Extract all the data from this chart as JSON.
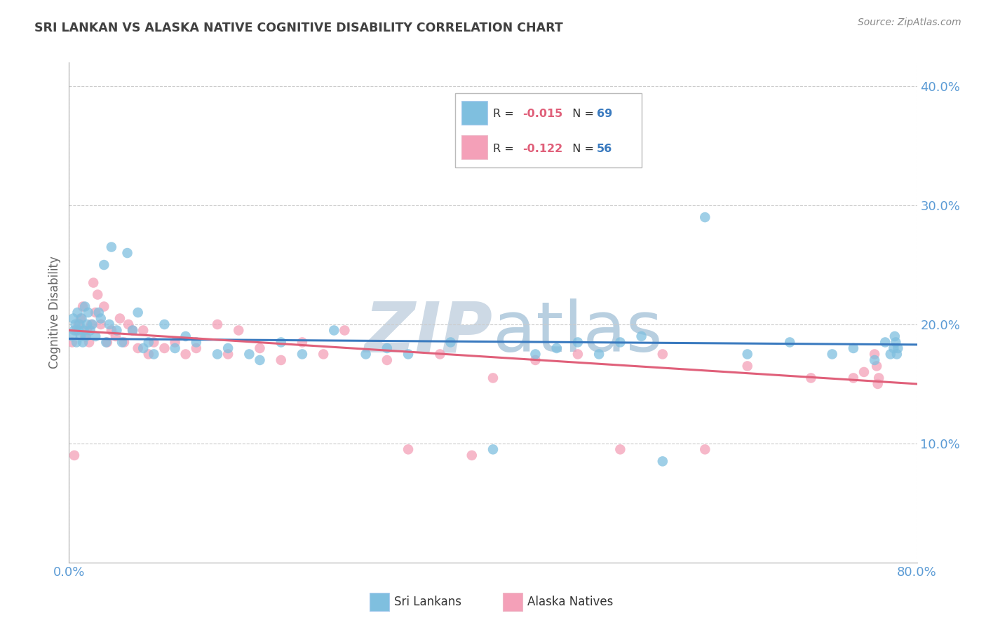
{
  "title": "SRI LANKAN VS ALASKA NATIVE COGNITIVE DISABILITY CORRELATION CHART",
  "source": "Source: ZipAtlas.com",
  "ylabel": "Cognitive Disability",
  "xlim": [
    0.0,
    0.8
  ],
  "ylim": [
    0.0,
    0.42
  ],
  "ytick_vals": [
    0.1,
    0.2,
    0.3,
    0.4
  ],
  "ytick_labels": [
    "10.0%",
    "20.0%",
    "30.0%",
    "40.0%"
  ],
  "xtick_vals": [
    0.0,
    0.8
  ],
  "xtick_labels": [
    "0.0%",
    "80.0%"
  ],
  "color_blue": "#7fbfdf",
  "color_pink": "#f4a0b8",
  "color_blue_line": "#3a7abf",
  "color_pink_line": "#e0607a",
  "background_color": "#ffffff",
  "grid_color": "#cccccc",
  "axis_label_color": "#5b9bd5",
  "title_color": "#404040",
  "legend_label_blue": "Sri Lankans",
  "legend_label_pink": "Alaska Natives",
  "sri_x": [
    0.003,
    0.004,
    0.005,
    0.006,
    0.007,
    0.008,
    0.009,
    0.01,
    0.011,
    0.012,
    0.013,
    0.014,
    0.015,
    0.016,
    0.017,
    0.018,
    0.02,
    0.022,
    0.025,
    0.028,
    0.03,
    0.033,
    0.035,
    0.038,
    0.04,
    0.045,
    0.05,
    0.055,
    0.06,
    0.065,
    0.07,
    0.075,
    0.08,
    0.09,
    0.1,
    0.11,
    0.12,
    0.14,
    0.15,
    0.17,
    0.18,
    0.2,
    0.22,
    0.25,
    0.28,
    0.3,
    0.32,
    0.36,
    0.4,
    0.44,
    0.46,
    0.48,
    0.5,
    0.52,
    0.54,
    0.56,
    0.6,
    0.64,
    0.68,
    0.72,
    0.74,
    0.76,
    0.77,
    0.775,
    0.778,
    0.779,
    0.78,
    0.781,
    0.782
  ],
  "sri_y": [
    0.19,
    0.205,
    0.195,
    0.2,
    0.185,
    0.21,
    0.195,
    0.2,
    0.19,
    0.205,
    0.185,
    0.195,
    0.215,
    0.19,
    0.2,
    0.21,
    0.195,
    0.2,
    0.19,
    0.21,
    0.205,
    0.25,
    0.185,
    0.2,
    0.265,
    0.195,
    0.185,
    0.26,
    0.195,
    0.21,
    0.18,
    0.185,
    0.175,
    0.2,
    0.18,
    0.19,
    0.185,
    0.175,
    0.18,
    0.175,
    0.17,
    0.185,
    0.175,
    0.195,
    0.175,
    0.18,
    0.175,
    0.185,
    0.095,
    0.175,
    0.18,
    0.185,
    0.175,
    0.185,
    0.19,
    0.085,
    0.29,
    0.175,
    0.185,
    0.175,
    0.18,
    0.17,
    0.185,
    0.175,
    0.18,
    0.19,
    0.185,
    0.175,
    0.18
  ],
  "alaska_x": [
    0.003,
    0.005,
    0.007,
    0.009,
    0.011,
    0.013,
    0.015,
    0.017,
    0.019,
    0.021,
    0.023,
    0.025,
    0.027,
    0.03,
    0.033,
    0.036,
    0.04,
    0.044,
    0.048,
    0.052,
    0.056,
    0.06,
    0.065,
    0.07,
    0.075,
    0.08,
    0.09,
    0.1,
    0.11,
    0.12,
    0.14,
    0.15,
    0.16,
    0.18,
    0.2,
    0.22,
    0.24,
    0.26,
    0.3,
    0.32,
    0.35,
    0.38,
    0.4,
    0.44,
    0.48,
    0.52,
    0.56,
    0.6,
    0.64,
    0.7,
    0.74,
    0.75,
    0.76,
    0.762,
    0.763,
    0.764
  ],
  "alaska_y": [
    0.185,
    0.09,
    0.195,
    0.2,
    0.205,
    0.215,
    0.19,
    0.195,
    0.185,
    0.2,
    0.235,
    0.21,
    0.225,
    0.2,
    0.215,
    0.185,
    0.195,
    0.19,
    0.205,
    0.185,
    0.2,
    0.195,
    0.18,
    0.195,
    0.175,
    0.185,
    0.18,
    0.185,
    0.175,
    0.18,
    0.2,
    0.175,
    0.195,
    0.18,
    0.17,
    0.185,
    0.175,
    0.195,
    0.17,
    0.095,
    0.175,
    0.09,
    0.155,
    0.17,
    0.175,
    0.095,
    0.175,
    0.095,
    0.165,
    0.155,
    0.155,
    0.16,
    0.175,
    0.165,
    0.15,
    0.155
  ]
}
